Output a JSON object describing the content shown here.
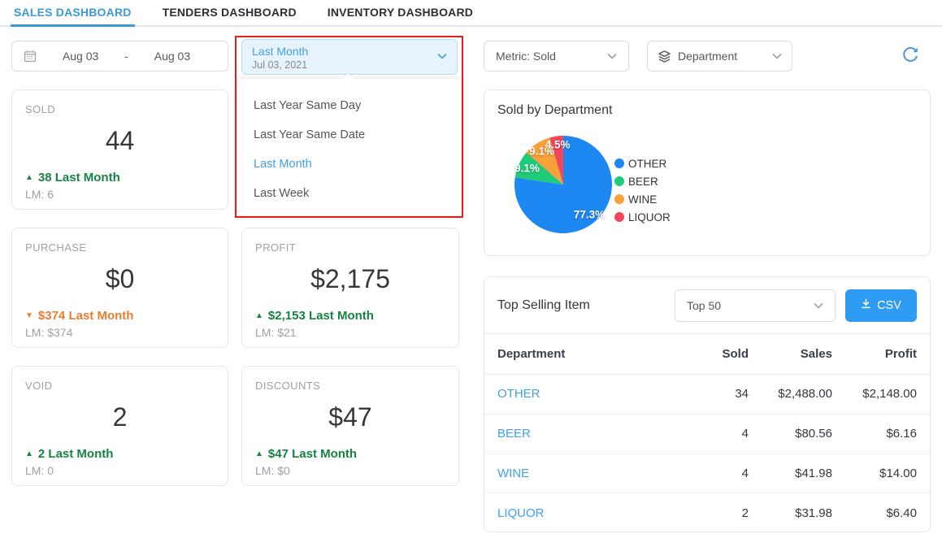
{
  "tabs": [
    {
      "label": "SALES DASHBOARD",
      "active": true
    },
    {
      "label": "TENDERS DASHBOARD",
      "active": false
    },
    {
      "label": "INVENTORY DASHBOARD",
      "active": false
    }
  ],
  "controls": {
    "date_range": {
      "start": "Aug 03",
      "separator": "-",
      "end": "Aug 03"
    },
    "comparison": {
      "selected_label": "Last Month",
      "selected_date": "Jul 03, 2021",
      "options": [
        "Last Year Same Day",
        "Last Year Same Date",
        "Last Month",
        "Last Week"
      ],
      "selected_index": 2
    },
    "metric_select": {
      "label": "Metric: Sold"
    },
    "grouping_select": {
      "label": "Department"
    }
  },
  "kpis": [
    {
      "title": "SOLD",
      "value": "44",
      "delta": "38 Last Month",
      "trend": "up",
      "lm": "LM: 6"
    },
    {
      "title": "PURCHASE",
      "value": "$0",
      "delta": "$374 Last Month",
      "trend": "down",
      "lm": "LM: $374"
    },
    {
      "title": "PROFIT",
      "value": "$2,175",
      "delta": "$2,153 Last Month",
      "trend": "up",
      "lm": "LM: $21"
    },
    {
      "title": "VOID",
      "value": "2",
      "delta": "2 Last Month",
      "trend": "up",
      "lm": "LM: 0"
    },
    {
      "title": "DISCOUNTS",
      "value": "$47",
      "delta": "$47 Last Month",
      "trend": "up",
      "lm": "LM: $0"
    }
  ],
  "chart_card": {
    "title": "Sold by Department"
  },
  "chart_data": {
    "type": "pie",
    "title": "Sold by Department",
    "labels": [
      "OTHER",
      "BEER",
      "WINE",
      "LIQUOR"
    ],
    "values": [
      77.3,
      9.1,
      9.1,
      4.5
    ],
    "value_suffix": "%",
    "colors": [
      "#1e88f2",
      "#1ecb7b",
      "#f8a13a",
      "#f4455a"
    ],
    "legend_position": "right",
    "slice_label_format": "percent"
  },
  "table_card": {
    "title": "Top Selling Item",
    "limit_label": "Top 50",
    "csv_label": "CSV",
    "columns": [
      "Department",
      "Sold",
      "Sales",
      "Profit"
    ],
    "rows": [
      [
        "OTHER",
        "34",
        "$2,488.00",
        "$2,148.00"
      ],
      [
        "BEER",
        "4",
        "$80.56",
        "$6.16"
      ],
      [
        "WINE",
        "4",
        "$41.98",
        "$14.00"
      ],
      [
        "LIQUOR",
        "2",
        "$31.98",
        "$6.40"
      ]
    ]
  },
  "colors": {
    "accent_blue": "#3d98d3",
    "link_blue": "#42a0e5",
    "positive_green": "#168342",
    "negative_orange": "#e97d2d",
    "csv_button_blue": "#2f9cf4",
    "annotation_red": "#e01f1f"
  }
}
